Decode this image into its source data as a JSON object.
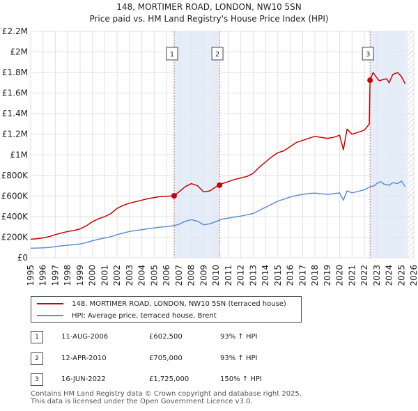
{
  "colors": {
    "property": "#cc0000",
    "hpi": "#5b8fd0",
    "shade": "#dce7f6",
    "vline": "#e06060"
  },
  "chart_data": {
    "type": "line",
    "title": "148, MORTIMER ROAD, LONDON, NW10 5SN",
    "subtitle": "Price paid vs. HM Land Registry's House Price Index (HPI)",
    "xlim": [
      1995,
      2026
    ],
    "ylim": [
      0,
      2200000
    ],
    "y_ticks": [
      {
        "value": 0,
        "label": "£0"
      },
      {
        "value": 200000,
        "label": "£200K"
      },
      {
        "value": 400000,
        "label": "£400K"
      },
      {
        "value": 600000,
        "label": "£600K"
      },
      {
        "value": 800000,
        "label": "£800K"
      },
      {
        "value": 1000000,
        "label": "£1M"
      },
      {
        "value": 1200000,
        "label": "£1.2M"
      },
      {
        "value": 1400000,
        "label": "£1.4M"
      },
      {
        "value": 1600000,
        "label": "£1.6M"
      },
      {
        "value": 1800000,
        "label": "£1.8M"
      },
      {
        "value": 2000000,
        "label": "£2M"
      },
      {
        "value": 2200000,
        "label": "£2.2M"
      }
    ],
    "x_ticks": [
      "1995",
      "1996",
      "1997",
      "1998",
      "1999",
      "2000",
      "2001",
      "2002",
      "2003",
      "2004",
      "2005",
      "2006",
      "2007",
      "2008",
      "2009",
      "2010",
      "2011",
      "2012",
      "2013",
      "2014",
      "2015",
      "2016",
      "2017",
      "2018",
      "2019",
      "2020",
      "2021",
      "2022",
      "2023",
      "2024",
      "2025",
      "2026"
    ],
    "shaded_ranges": [
      [
        2006.61,
        2010.28
      ],
      [
        2022.46,
        2025.5
      ]
    ],
    "future_hatch_from": 2025.5,
    "series": [
      {
        "name": "148, MORTIMER ROAD, LONDON, NW10 5SN (terraced house)",
        "x": [
          1995.0,
          1995.5,
          1996.0,
          1996.5,
          1997.0,
          1997.5,
          1998.0,
          1998.5,
          1999.0,
          1999.5,
          2000.0,
          2000.5,
          2001.0,
          2001.5,
          2002.0,
          2002.5,
          2003.0,
          2003.5,
          2004.0,
          2004.5,
          2005.0,
          2005.5,
          2006.0,
          2006.61,
          2007.0,
          2007.5,
          2008.0,
          2008.5,
          2009.0,
          2009.5,
          2010.0,
          2010.28,
          2010.5,
          2011.0,
          2011.5,
          2012.0,
          2012.5,
          2013.0,
          2013.5,
          2014.0,
          2014.5,
          2015.0,
          2015.5,
          2016.0,
          2016.5,
          2017.0,
          2017.5,
          2018.0,
          2018.5,
          2019.0,
          2019.5,
          2020.0,
          2020.3,
          2020.6,
          2021.0,
          2021.5,
          2022.0,
          2022.4,
          2022.46,
          2022.7,
          2023.0,
          2023.2,
          2023.5,
          2023.8,
          2024.0,
          2024.3,
          2024.7,
          2025.0,
          2025.3
        ],
        "y": [
          180000,
          185000,
          193000,
          205000,
          225000,
          240000,
          255000,
          265000,
          280000,
          310000,
          350000,
          380000,
          400000,
          430000,
          480000,
          510000,
          530000,
          545000,
          560000,
          575000,
          585000,
          595000,
          598000,
          602500,
          640000,
          690000,
          720000,
          700000,
          640000,
          650000,
          690000,
          705000,
          720000,
          740000,
          760000,
          775000,
          790000,
          820000,
          880000,
          930000,
          980000,
          1020000,
          1040000,
          1080000,
          1120000,
          1140000,
          1160000,
          1180000,
          1170000,
          1160000,
          1170000,
          1190000,
          1050000,
          1250000,
          1200000,
          1220000,
          1240000,
          1300000,
          1725000,
          1800000,
          1750000,
          1720000,
          1730000,
          1740000,
          1700000,
          1780000,
          1800000,
          1760000,
          1690000
        ]
      },
      {
        "name": "HPI: Average price, terraced house, Brent",
        "x": [
          1995.0,
          1995.5,
          1996.0,
          1996.5,
          1997.0,
          1997.5,
          1998.0,
          1998.5,
          1999.0,
          1999.5,
          2000.0,
          2000.5,
          2001.0,
          2001.5,
          2002.0,
          2002.5,
          2003.0,
          2003.5,
          2004.0,
          2004.5,
          2005.0,
          2005.5,
          2006.0,
          2006.61,
          2007.0,
          2007.5,
          2008.0,
          2008.5,
          2009.0,
          2009.5,
          2010.0,
          2010.28,
          2010.5,
          2011.0,
          2011.5,
          2012.0,
          2012.5,
          2013.0,
          2013.5,
          2014.0,
          2014.5,
          2015.0,
          2015.5,
          2016.0,
          2016.5,
          2017.0,
          2017.5,
          2018.0,
          2018.5,
          2019.0,
          2019.5,
          2020.0,
          2020.3,
          2020.6,
          2021.0,
          2021.5,
          2022.0,
          2022.46,
          2022.8,
          2023.0,
          2023.3,
          2023.6,
          2024.0,
          2024.3,
          2024.7,
          2025.0,
          2025.3
        ],
        "y": [
          93000,
          94000,
          97000,
          100000,
          108000,
          116000,
          122000,
          127000,
          134000,
          147000,
          165000,
          180000,
          192000,
          205000,
          225000,
          240000,
          255000,
          265000,
          272000,
          282000,
          290000,
          298000,
          302000,
          312000,
          325000,
          355000,
          370000,
          355000,
          320000,
          330000,
          352000,
          365000,
          375000,
          385000,
          395000,
          405000,
          418000,
          430000,
          460000,
          490000,
          520000,
          550000,
          570000,
          590000,
          605000,
          615000,
          625000,
          628000,
          622000,
          616000,
          622000,
          630000,
          560000,
          650000,
          630000,
          645000,
          660000,
          690000,
          700000,
          720000,
          740000,
          715000,
          705000,
          730000,
          720000,
          745000,
          690000
        ]
      }
    ],
    "sales": [
      {
        "n": "1",
        "x": 2006.61,
        "y": 602500
      },
      {
        "n": "2",
        "x": 2010.28,
        "y": 705000
      },
      {
        "n": "3",
        "x": 2022.46,
        "y": 1725000
      }
    ]
  },
  "legend": {
    "property_label": "148, MORTIMER ROAD, LONDON, NW10 5SN (terraced house)",
    "hpi_label": "HPI: Average price, terraced house, Brent"
  },
  "transactions": [
    {
      "n": "1",
      "date": "11-AUG-2006",
      "price": "£602,500",
      "hpi": "93% ↑ HPI"
    },
    {
      "n": "2",
      "date": "12-APR-2010",
      "price": "£705,000",
      "hpi": "93% ↑ HPI"
    },
    {
      "n": "3",
      "date": "16-JUN-2022",
      "price": "£1,725,000",
      "hpi": "150% ↑ HPI"
    }
  ],
  "footer": {
    "line1": "Contains HM Land Registry data © Crown copyright and database right 2025.",
    "line2": "This data is licensed under the Open Government Licence v3.0."
  }
}
